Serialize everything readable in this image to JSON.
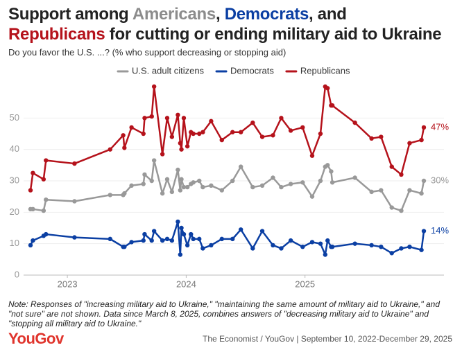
{
  "chart_data": {
    "type": "line",
    "title": [
      {
        "text": "Support among ",
        "color": "#222222"
      },
      {
        "text": "Americans",
        "color": "#8c8c8c"
      },
      {
        "text": ", ",
        "color": "#222222"
      },
      {
        "text": "Democrats",
        "color": "#0b3fa3"
      },
      {
        "text": ", and",
        "color": "#222222"
      },
      {
        "text": "Republicans",
        "color": "#b5121b"
      },
      {
        "text": " for cutting or ending military aid to Ukraine",
        "color": "#222222"
      }
    ],
    "subtitle": "Do you favor the U.S. ...? (% who support decreasing or stopping aid)",
    "x": [
      2022.69,
      2022.71,
      2022.8,
      2022.82,
      2023.06,
      2023.36,
      2023.47,
      2023.48,
      2023.54,
      2023.64,
      2023.65,
      2023.71,
      2023.73,
      2023.8,
      2023.84,
      2023.88,
      2023.93,
      2023.95,
      2023.96,
      2023.98,
      2024.01,
      2024.04,
      2024.06,
      2024.11,
      2024.14,
      2024.21,
      2024.3,
      2024.39,
      2024.46,
      2024.56,
      2024.64,
      2024.73,
      2024.8,
      2024.88,
      2024.98,
      2025.06,
      2025.13,
      2025.17,
      2025.19,
      2025.22,
      2025.23,
      2025.42,
      2025.56,
      2025.64,
      2025.73,
      2025.81,
      2025.88,
      2025.98,
      2026.0
    ],
    "series": [
      {
        "name": "U.S. adult citizens",
        "color": "#999999",
        "end_label": "30%",
        "values": [
          21,
          21,
          20.5,
          24,
          23.5,
          25.5,
          25.5,
          26,
          28.5,
          29,
          32,
          30,
          36.5,
          26,
          30.5,
          26.5,
          33.5,
          27,
          30.5,
          28,
          28,
          29,
          29.5,
          30,
          28,
          28.5,
          27,
          30,
          34.5,
          28,
          28.5,
          31,
          28,
          29,
          29.5,
          25,
          30,
          34.5,
          35,
          33,
          29.5,
          31,
          26.5,
          27,
          21.5,
          20.5,
          27,
          26,
          30
        ]
      },
      {
        "name": "Democrats",
        "color": "#0b3fa3",
        "end_label": "14%",
        "values": [
          9.5,
          11,
          12.5,
          13,
          12,
          11.5,
          9,
          9,
          10.5,
          11,
          13,
          11,
          14,
          11,
          11.5,
          11,
          17,
          6.5,
          15,
          13,
          9.5,
          13,
          11.5,
          11.5,
          8.5,
          9.5,
          11.5,
          11.5,
          14.5,
          8.5,
          14,
          9.5,
          8.5,
          11,
          9,
          10.5,
          10,
          6.5,
          11,
          9,
          9,
          10,
          9.5,
          9,
          7,
          8.5,
          9,
          8,
          14
        ]
      },
      {
        "name": "Republicans",
        "color": "#b5121b",
        "end_label": "47%",
        "values": [
          27,
          32.5,
          30.5,
          36.5,
          35.5,
          40,
          44.5,
          40.5,
          47,
          45,
          50,
          50.5,
          60,
          38.5,
          50,
          44,
          51,
          42,
          40,
          50,
          41,
          45.5,
          45,
          45,
          45.5,
          49,
          43,
          45.5,
          45.5,
          48.5,
          44,
          44.5,
          50,
          46,
          47,
          38,
          45,
          60,
          59.5,
          54,
          54,
          48.5,
          43.5,
          44,
          34.5,
          32,
          42,
          43,
          47
        ]
      }
    ],
    "xlim": [
      2022.69,
      2026.0
    ],
    "xticks": [
      2023,
      2024,
      2025
    ],
    "ylim": [
      0,
      60
    ],
    "yticks": [
      0,
      10,
      20,
      30,
      40,
      50
    ],
    "grid": true,
    "note": "Note: Responses of \"increasing military aid to Ukraine,\" \"maintaining the same amount of military aid to Ukraine,\" and \"not sure\" are not shown. Data since March 8, 2025, combines answers of \"decreasing military aid to Ukraine\" and \"stopping all military aid to Ukraine.\"",
    "logo": "YouGov",
    "source": "The Economist / YouGov | September 10, 2022-December 29, 2025"
  }
}
